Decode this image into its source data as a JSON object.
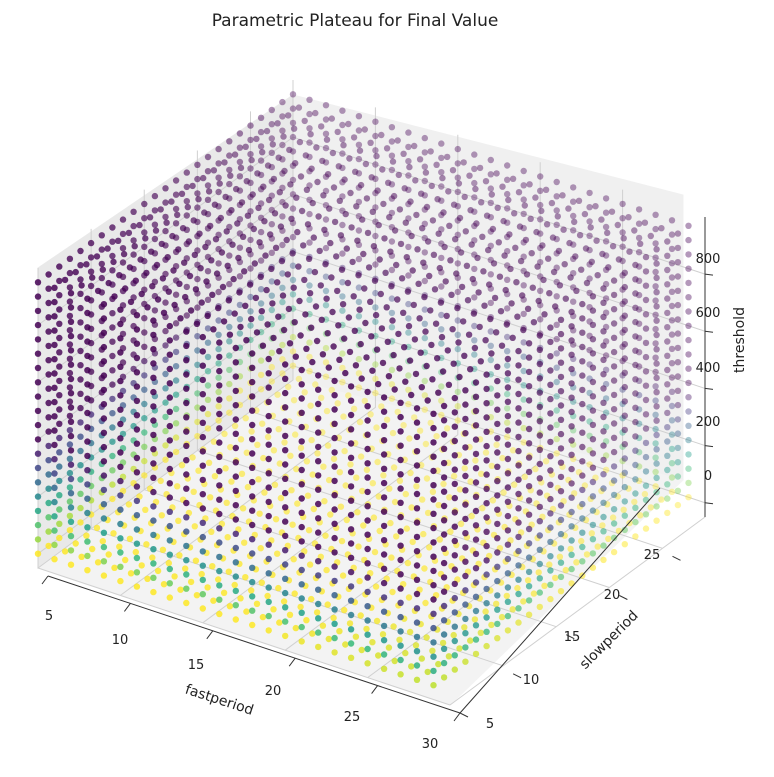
{
  "chart_data": {
    "type": "scatter",
    "subtype": "3d-scatter",
    "title": "Parametric Plateau for Final Value",
    "xlabel": "fastperiod",
    "ylabel": "slowperiod",
    "zlabel": "threshold",
    "x_ticks": [
      "5",
      "10",
      "15",
      "20",
      "25",
      "30"
    ],
    "y_ticks": [
      "5",
      "10",
      "15",
      "20",
      "25"
    ],
    "z_ticks": [
      "0",
      "200",
      "400",
      "600",
      "800"
    ],
    "xlim": [
      5,
      30
    ],
    "ylim": [
      5,
      29
    ],
    "zlim": [
      -50,
      1000
    ],
    "grid": true,
    "colormap": "viridis",
    "x_range": [
      5,
      29,
      1
    ],
    "y_range": [
      5,
      29,
      1
    ],
    "z_range": [
      0,
      950,
      50
    ],
    "color_value_trend": "high near threshold 0, low fastperiod and high slowperiod; decreasing as threshold increases",
    "colors": {
      "pane": "#f0f0f0",
      "grid": "#d0d0d0",
      "axis": "#333333",
      "viridis_low": "#440154",
      "viridis_mid": "#21918c",
      "viridis_high": "#fde725"
    }
  }
}
